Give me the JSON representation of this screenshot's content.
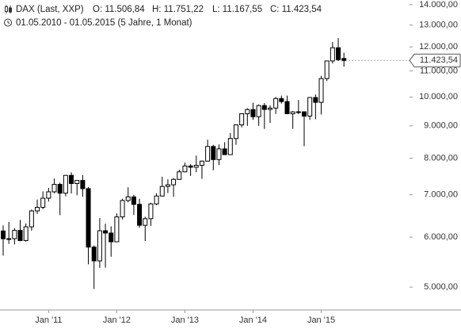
{
  "chart_data": {
    "type": "candlestick",
    "title": "DAX (Last, XXP)",
    "ohlc_labels": [
      "O: 11.506,84",
      "H: 11.751,22",
      "L: 11.167,55",
      "C: 11.423,54"
    ],
    "subtitle": "01.05.2010 - 01.05.2015 (5 Jahre, 1 Monat)",
    "last_label": "11.423,54",
    "categories": [
      null,
      null,
      null,
      null,
      null,
      null,
      null,
      null,
      "Jan '11",
      null,
      null,
      null,
      null,
      null,
      null,
      null,
      null,
      null,
      null,
      null,
      "Jan '12",
      null,
      null,
      null,
      null,
      null,
      null,
      null,
      null,
      null,
      null,
      null,
      "Jan '13",
      null,
      null,
      null,
      null,
      null,
      null,
      null,
      null,
      null,
      null,
      null,
      "Jan '14",
      null,
      null,
      null,
      null,
      null,
      null,
      null,
      null,
      null,
      null,
      null,
      "Jan '15",
      null,
      null,
      null,
      null
    ],
    "open": [
      6135,
      5964,
      5966,
      6148,
      5925,
      6229,
      6601,
      6688,
      6914,
      7077,
      7272,
      7041,
      7514,
      7294,
      7376,
      7159,
      5785,
      5502,
      6141,
      6089,
      5898,
      6458,
      6856,
      6947,
      6761,
      6264,
      6416,
      6772,
      6970,
      7216,
      7260,
      7405,
      7612,
      7776,
      7741,
      7795,
      7914,
      8349,
      7959,
      8276,
      8104,
      8594,
      9033,
      9406,
      9552,
      9306,
      9692,
      9556,
      9603,
      9943,
      9833,
      9407,
      9470,
      9474,
      9327,
      9980,
      9806,
      10694,
      11402,
      11966,
      11506.84
    ],
    "high": [
      6260,
      6342,
      6200,
      6386,
      6304,
      6634,
      6880,
      7087,
      7180,
      7426,
      7318,
      7527,
      7600,
      7350,
      7523,
      7200,
      5820,
      6430,
      6300,
      6240,
      6540,
      6900,
      7194,
      7000,
      6900,
      6462,
      6800,
      7040,
      7478,
      7407,
      7440,
      7672,
      7871,
      7830,
      8075,
      7935,
      8558,
      8400,
      8410,
      8480,
      8770,
      9050,
      9424,
      9600,
      9794,
      9730,
      9780,
      9700,
      10000,
      10050,
      10050,
      9500,
      9890,
      9480,
      10000,
      10093,
      10800,
      11400,
      12220,
      12391,
      11751.22
    ],
    "low": [
      5607,
      5852,
      5842,
      5911,
      5903,
      6142,
      6530,
      6642,
      6830,
      7035,
      6500,
      6962,
      7035,
      6988,
      6951,
      5433,
      4966,
      5364,
      5366,
      5587,
      5900,
      6400,
      6808,
      6504,
      6207,
      5915,
      6250,
      6740,
      6960,
      7046,
      6950,
      7396,
      7600,
      7500,
      7600,
      7418,
      7900,
      7655,
      7800,
      8100,
      8100,
      8400,
      8950,
      9000,
      9200,
      9000,
      8900,
      9100,
      9400,
      9760,
      9400,
      8903,
      9400,
      8355,
      9200,
      9219,
      9382,
      10600,
      11300,
      11400,
      11167.55
    ],
    "close": [
      5964,
      5966,
      6148,
      5925,
      6229,
      6601,
      6688,
      6914,
      7077,
      7272,
      7041,
      7514,
      7294,
      7376,
      7159,
      5785,
      5502,
      6141,
      6089,
      5898,
      6458,
      6856,
      6947,
      6761,
      6264,
      6416,
      6772,
      6970,
      7216,
      7260,
      7405,
      7612,
      7776,
      7741,
      7795,
      7914,
      8349,
      7959,
      8276,
      8104,
      8594,
      9033,
      9406,
      9552,
      9306,
      9692,
      9556,
      9603,
      9943,
      9833,
      9407,
      9470,
      9474,
      9327,
      9980,
      9806,
      10694,
      11402,
      11966,
      11454,
      11423.54
    ],
    "up_color": "#ffffff",
    "down_color": "#000000",
    "log_scale": true,
    "ylim": [
      4600,
      14200
    ],
    "yticks": [
      {
        "value": 5000,
        "label": "5.000,00"
      },
      {
        "value": 6000,
        "label": "6.000,00"
      },
      {
        "value": 7000,
        "label": "7.000,00"
      },
      {
        "value": 8000,
        "label": "8.000,00"
      },
      {
        "value": 9000,
        "label": "9.000,00"
      },
      {
        "value": 10000,
        "label": "10.000,00"
      },
      {
        "value": 11000,
        "label": "11.000,00"
      },
      {
        "value": 12000,
        "label": "12.000,00"
      },
      {
        "value": 13000,
        "label": "13.000,00"
      },
      {
        "value": 14000,
        "label": "14.000,00"
      }
    ]
  }
}
